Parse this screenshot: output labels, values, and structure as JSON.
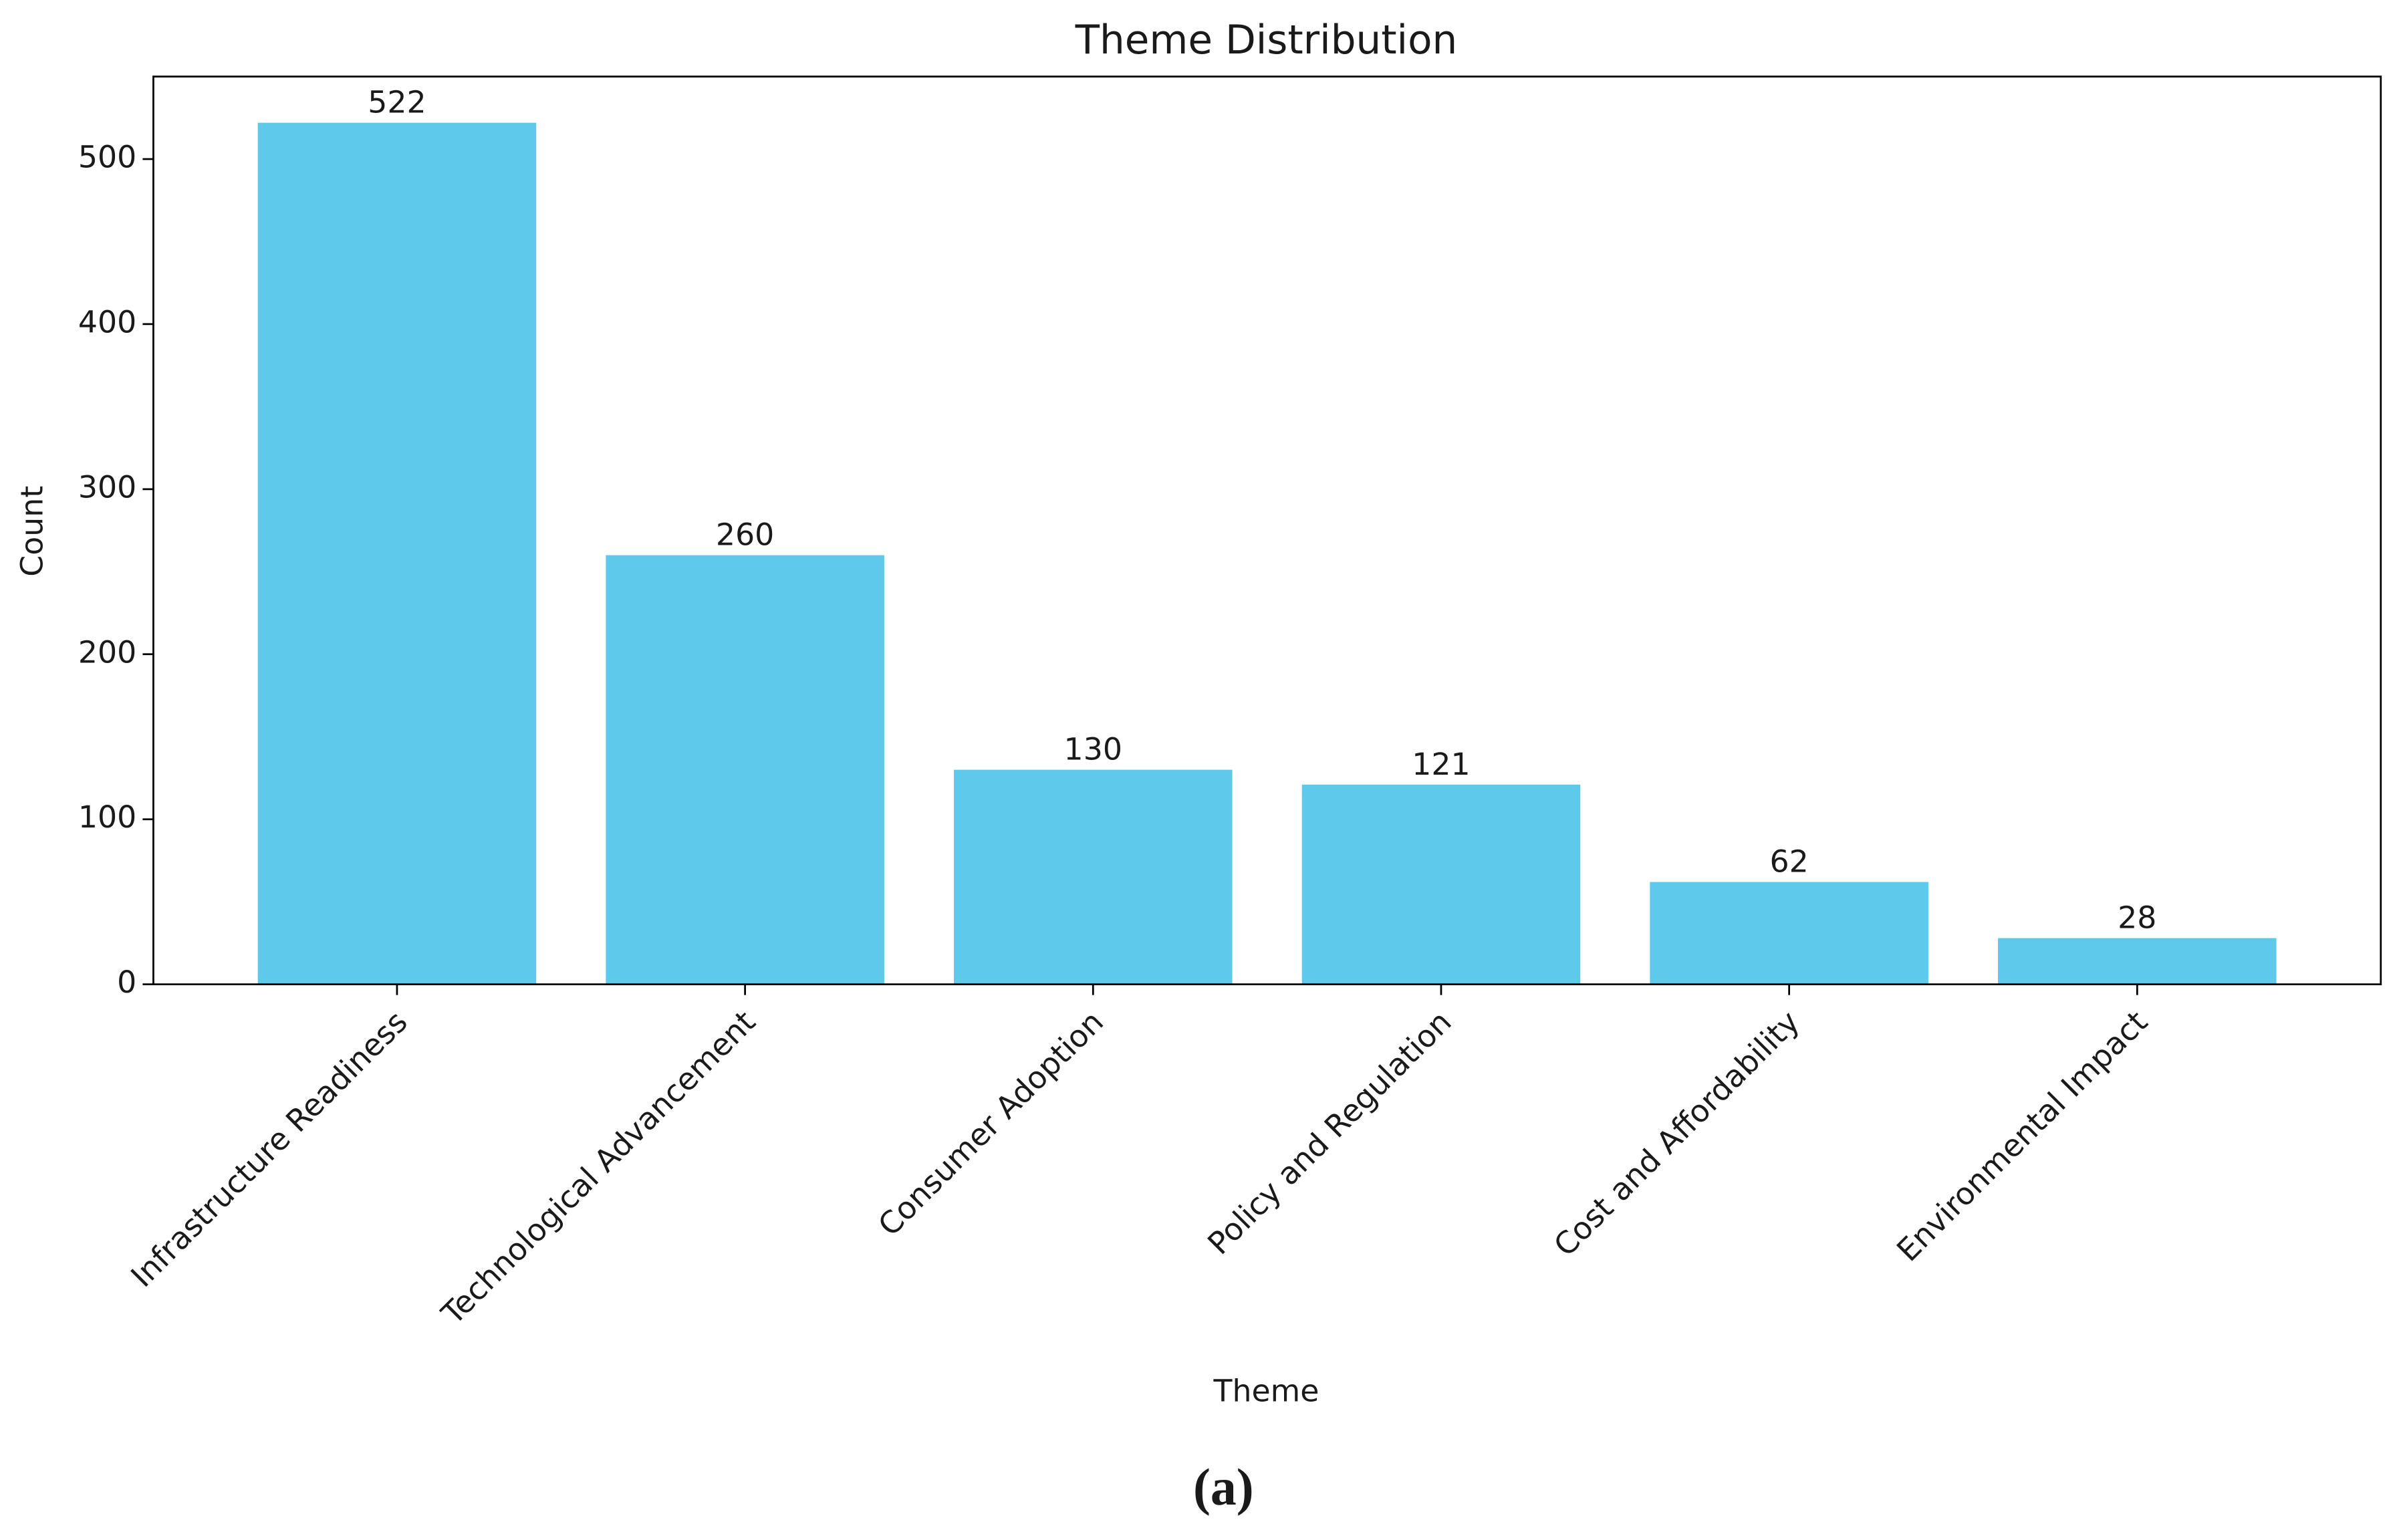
{
  "chart_data": {
    "type": "bar",
    "title": "Theme Distribution",
    "x_label": "Theme",
    "y_label": "Count",
    "categories": [
      "Infrastructure Readiness",
      "Technological Advancement",
      "Consumer Adoption",
      "Policy and Regulation",
      "Cost and Affordability",
      "Environmental Impact"
    ],
    "values": [
      522,
      260,
      130,
      121,
      62,
      28
    ],
    "color": "#5ec9ea",
    "ylim": [
      0,
      550
    ],
    "yticks": [
      0,
      100,
      200,
      300,
      400,
      500
    ],
    "grid": false,
    "caption": "(a)"
  }
}
